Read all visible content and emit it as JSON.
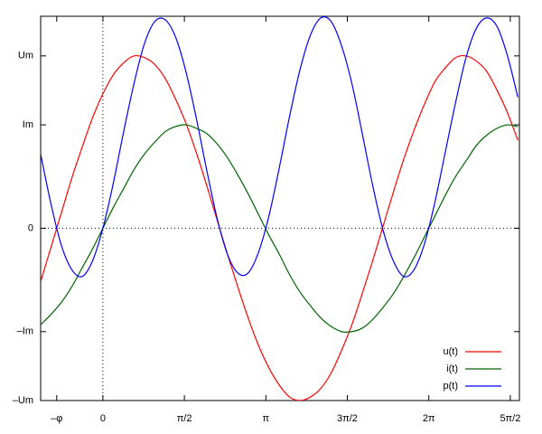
{
  "chart_data": {
    "type": "line",
    "x": [
      -1.2,
      -1.0,
      -0.8,
      -0.6,
      -0.4,
      -0.2,
      0,
      0.2,
      0.4,
      0.6,
      0.8,
      1.0,
      1.2,
      1.4,
      1.6,
      1.8,
      2.0,
      2.2,
      2.4,
      2.6,
      2.8,
      3.0,
      3.2,
      3.4,
      3.6,
      3.8,
      4.0,
      4.2,
      4.4,
      4.6,
      4.8,
      5.0,
      5.2,
      5.4,
      5.6,
      5.8,
      6.0,
      6.2,
      6.4,
      6.6,
      6.8,
      7.0,
      7.2,
      7.4,
      7.6,
      7.8,
      8.0
    ],
    "series": [
      {
        "name": "u(t)",
        "color": "#ff0000",
        "values": [
          -0.31,
          -0.11,
          0.09,
          0.29,
          0.47,
          0.64,
          0.78,
          0.89,
          0.96,
          1.0,
          0.99,
          0.95,
          0.87,
          0.75,
          0.61,
          0.44,
          0.25,
          0.05,
          -0.15,
          -0.34,
          -0.52,
          -0.68,
          -0.81,
          -0.91,
          -0.98,
          -1.0,
          -0.98,
          -0.93,
          -0.84,
          -0.71,
          -0.56,
          -0.38,
          -0.19,
          0.01,
          0.21,
          0.4,
          0.57,
          0.72,
          0.85,
          0.93,
          0.99,
          1.0,
          0.97,
          0.91,
          0.8,
          0.67,
          0.51
        ]
      },
      {
        "name": "i(t)",
        "color": "#006400",
        "values": [
          -0.56,
          -0.5,
          -0.43,
          -0.34,
          -0.23,
          -0.12,
          0,
          0.12,
          0.23,
          0.34,
          0.43,
          0.5,
          0.56,
          0.59,
          0.6,
          0.58,
          0.55,
          0.49,
          0.41,
          0.31,
          0.2,
          0.08,
          -0.04,
          -0.15,
          -0.27,
          -0.37,
          -0.45,
          -0.52,
          -0.57,
          -0.6,
          -0.6,
          -0.58,
          -0.53,
          -0.46,
          -0.38,
          -0.28,
          -0.17,
          -0.05,
          0.07,
          0.19,
          0.3,
          0.39,
          0.48,
          0.54,
          0.58,
          0.6,
          0.59
        ]
      },
      {
        "name": "p(t)",
        "color": "#0000ff",
        "values": [
          0.43,
          0.14,
          -0.1,
          -0.24,
          -0.28,
          -0.19,
          0,
          0.26,
          0.56,
          0.84,
          1.07,
          1.2,
          1.21,
          1.11,
          0.91,
          0.64,
          0.34,
          0.06,
          -0.15,
          -0.26,
          -0.26,
          -0.14,
          0.07,
          0.35,
          0.65,
          0.92,
          1.12,
          1.22,
          1.2,
          1.06,
          0.84,
          0.55,
          0.25,
          -0.01,
          -0.19,
          -0.28,
          -0.24,
          -0.09,
          0.15,
          0.44,
          0.73,
          0.99,
          1.16,
          1.22,
          1.17,
          1.0,
          0.76
        ]
      }
    ],
    "xlim": [
      -1.2,
      8.03
    ],
    "ylim": [
      -1,
      1.23
    ],
    "xticks": [
      {
        "value": -0.89,
        "label": "–φ"
      },
      0,
      {
        "value": 1.571,
        "label": "π/2"
      },
      {
        "value": 3.142,
        "label": "π"
      },
      {
        "value": 4.712,
        "label": "3π/2"
      },
      {
        "value": 6.283,
        "label": "2π"
      },
      {
        "value": 7.854,
        "label": "5π/2"
      }
    ],
    "yticks": [
      {
        "value": -1,
        "label": "–Um"
      },
      {
        "value": -0.6,
        "label": "–Im"
      },
      0,
      {
        "value": 0.6,
        "label": "Im"
      },
      {
        "value": 1,
        "label": "Um"
      }
    ],
    "zero_axes": true,
    "grid": false,
    "legend": "lower right"
  }
}
